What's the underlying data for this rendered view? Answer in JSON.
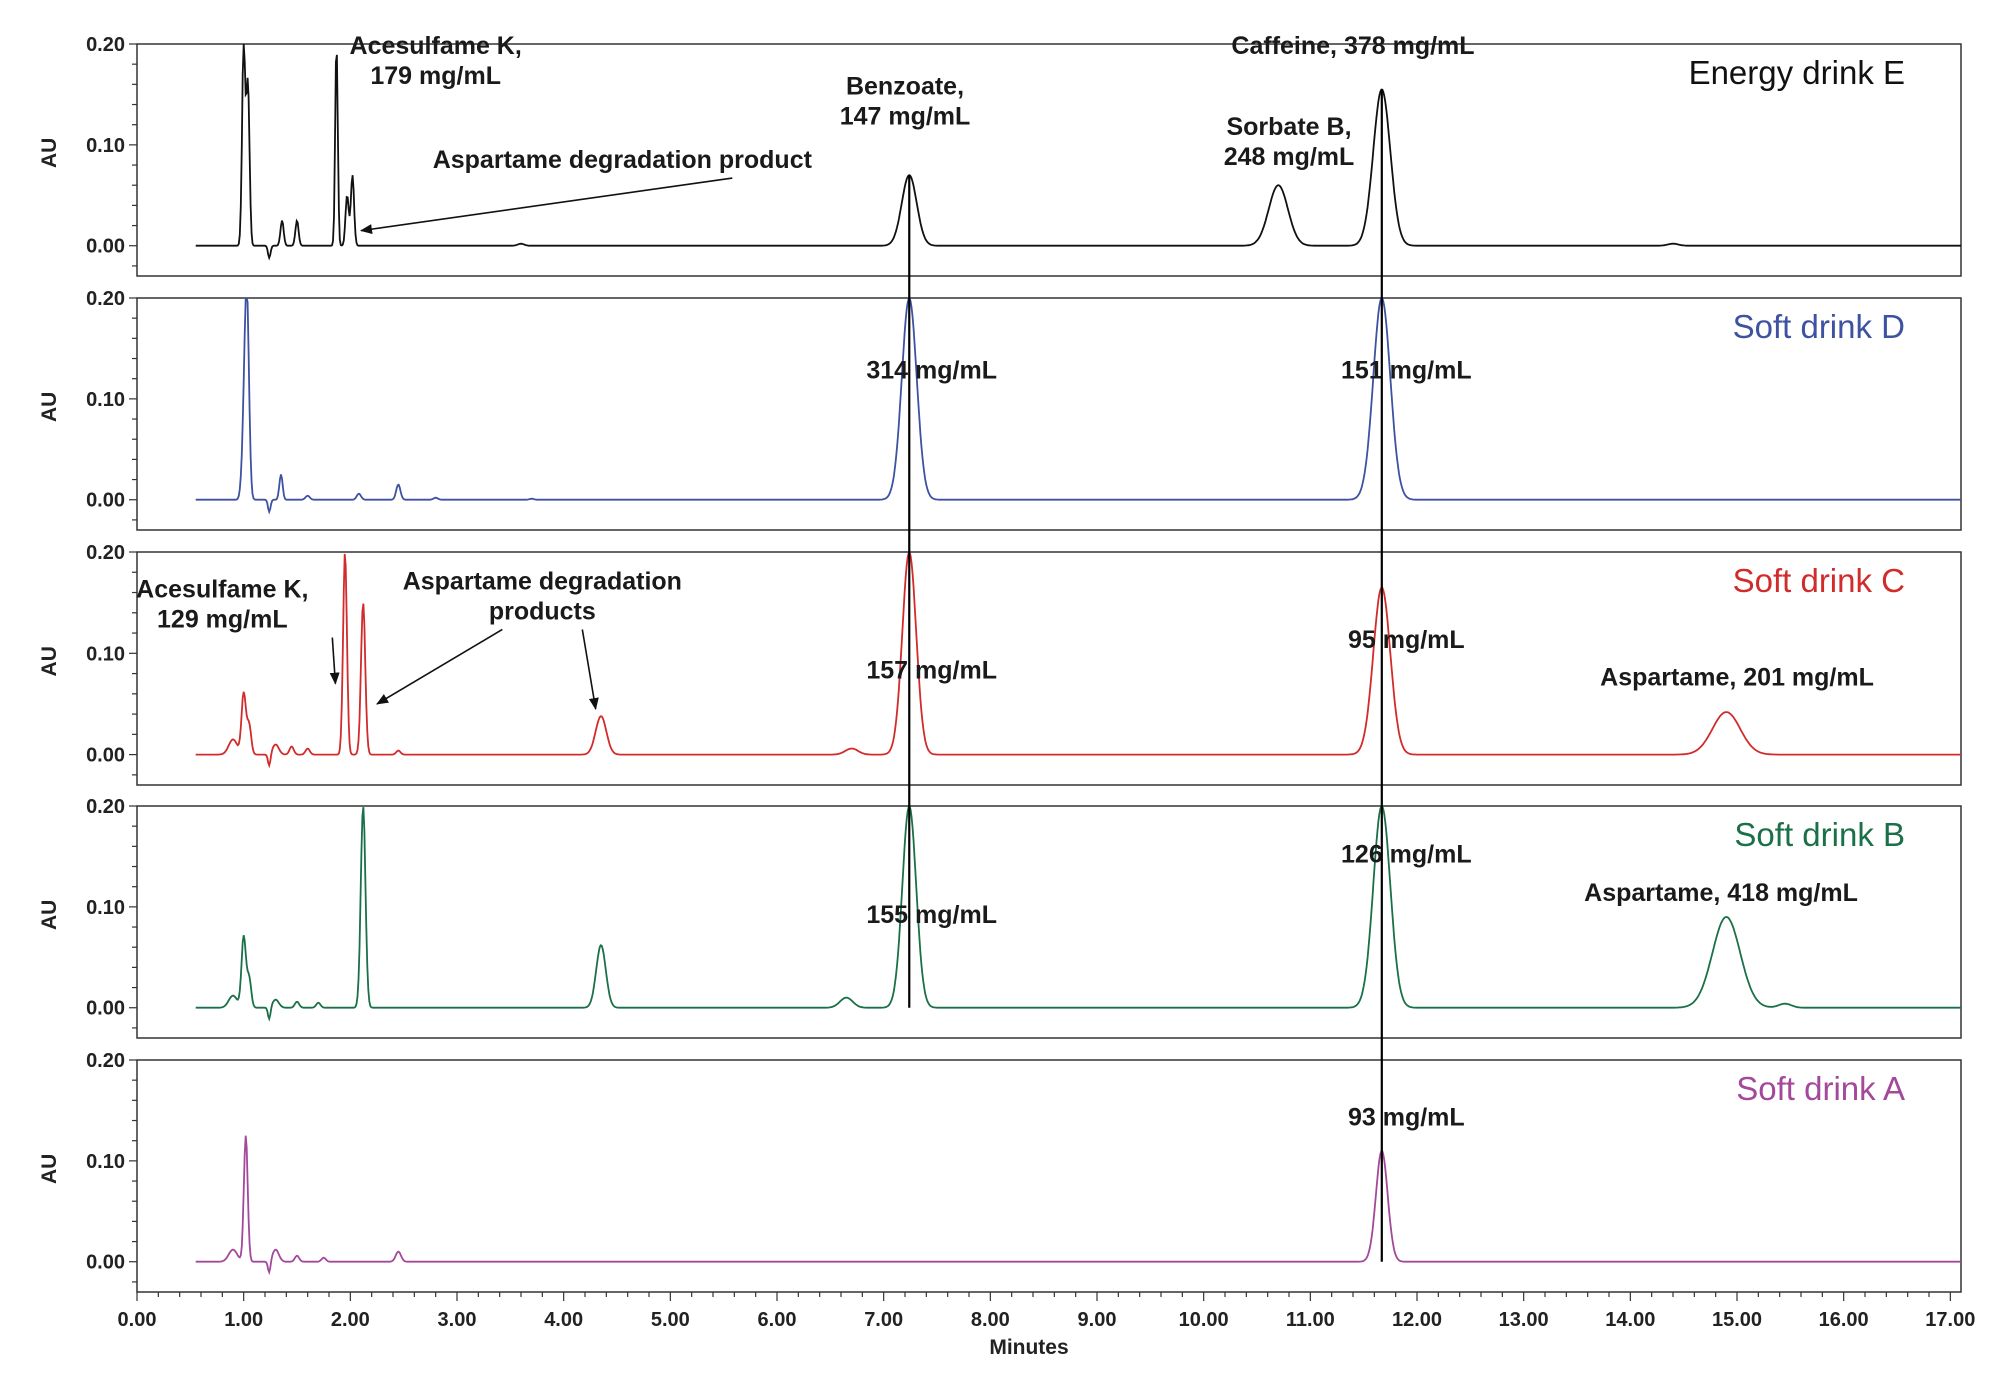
{
  "chart_data": {
    "type": "line",
    "xlabel": "Minutes",
    "ylabel": "AU",
    "xlim": [
      0,
      17.1
    ],
    "ylim": [
      -0.03,
      0.2
    ],
    "x_ticks": [
      "0.00",
      "1.00",
      "2.00",
      "3.00",
      "4.00",
      "5.00",
      "6.00",
      "7.00",
      "8.00",
      "9.00",
      "10.00",
      "11.00",
      "12.00",
      "13.00",
      "14.00",
      "15.00",
      "16.00",
      "17.00"
    ],
    "y_ticks": [
      "0.00",
      "0.10",
      "0.20"
    ],
    "reference_lines_x": [
      7.24,
      11.67
    ],
    "series": [
      {
        "name": "Energy drink E",
        "color": "#111111",
        "peaks": [
          [
            1.0,
            0.2,
            0.015
          ],
          [
            1.04,
            0.16,
            0.015
          ],
          [
            1.36,
            0.025,
            0.015
          ],
          [
            1.5,
            0.025,
            0.015
          ],
          [
            1.87,
            0.2,
            0.012
          ],
          [
            1.97,
            0.05,
            0.015
          ],
          [
            2.02,
            0.07,
            0.015
          ],
          [
            3.6,
            0.002,
            0.03
          ],
          [
            7.24,
            0.07,
            0.07
          ],
          [
            10.7,
            0.06,
            0.09
          ],
          [
            11.67,
            0.155,
            0.08
          ],
          [
            14.4,
            0.002,
            0.05
          ]
        ],
        "annotations": [
          {
            "lines": [
              "Acesulfame K,",
              "179 mg/mL"
            ],
            "x": 2.8,
            "y": 0.19
          },
          {
            "lines": [
              "Aspartame degradation product"
            ],
            "x": 4.55,
            "y": 0.077,
            "arrow_to": [
              2.1,
              0.015
            ]
          },
          {
            "lines": [
              "Benzoate,",
              "147 mg/mL"
            ],
            "x": 7.2,
            "y": 0.15
          },
          {
            "lines": [
              "Caffeine, 378 mg/mL"
            ],
            "x": 11.4,
            "y": 0.19
          },
          {
            "lines": [
              "Sorbate B,",
              "248 mg/mL"
            ],
            "x": 10.8,
            "y": 0.11
          }
        ]
      },
      {
        "name": "Soft drink D",
        "color": "#3d52a0",
        "peaks": [
          [
            1.03,
            0.2,
            0.02
          ],
          [
            1.0,
            0.05,
            0.02
          ],
          [
            1.35,
            0.025,
            0.015
          ],
          [
            1.6,
            0.004,
            0.02
          ],
          [
            2.08,
            0.006,
            0.02
          ],
          [
            2.45,
            0.015,
            0.02
          ],
          [
            2.8,
            0.002,
            0.02
          ],
          [
            3.7,
            0.001,
            0.02
          ],
          [
            7.24,
            0.2,
            0.07
          ],
          [
            11.67,
            0.2,
            0.08
          ]
        ],
        "annotations": [
          {
            "lines": [
              "314 mg/mL"
            ],
            "x": 7.45,
            "y": 0.12
          },
          {
            "lines": [
              "151 mg/mL"
            ],
            "x": 11.9,
            "y": 0.12
          }
        ]
      },
      {
        "name": "Soft drink C",
        "color": "#d22b2b",
        "peaks": [
          [
            0.9,
            0.015,
            0.04
          ],
          [
            1.0,
            0.06,
            0.02
          ],
          [
            1.05,
            0.03,
            0.02
          ],
          [
            1.3,
            0.01,
            0.03
          ],
          [
            1.45,
            0.008,
            0.02
          ],
          [
            1.6,
            0.006,
            0.02
          ],
          [
            1.95,
            0.2,
            0.018
          ],
          [
            2.12,
            0.15,
            0.02
          ],
          [
            2.45,
            0.004,
            0.02
          ],
          [
            4.35,
            0.038,
            0.05
          ],
          [
            6.7,
            0.006,
            0.06
          ],
          [
            7.24,
            0.2,
            0.065
          ],
          [
            11.67,
            0.165,
            0.08
          ],
          [
            14.9,
            0.042,
            0.13
          ]
        ],
        "annotations": [
          {
            "lines": [
              "Acesulfame K,",
              "129 mg/mL"
            ],
            "x": 0.8,
            "y": 0.155,
            "arrow_to": [
              1.86,
              0.07
            ]
          },
          {
            "lines": [
              "Aspartame degradation",
              "products"
            ],
            "x": 3.8,
            "y": 0.163,
            "arrow_to": [
              2.25,
              0.05
            ],
            "arrow_to_2": [
              4.3,
              0.045
            ]
          },
          {
            "lines": [
              "157 mg/mL"
            ],
            "x": 7.45,
            "y": 0.075
          },
          {
            "lines": [
              "95 mg/mL"
            ],
            "x": 11.9,
            "y": 0.105
          },
          {
            "lines": [
              "Aspartame, 201 mg/mL"
            ],
            "x": 15.0,
            "y": 0.068
          }
        ]
      },
      {
        "name": "Soft drink B",
        "color": "#1a7048",
        "peaks": [
          [
            0.9,
            0.012,
            0.04
          ],
          [
            1.0,
            0.07,
            0.02
          ],
          [
            1.05,
            0.03,
            0.02
          ],
          [
            1.3,
            0.008,
            0.03
          ],
          [
            1.5,
            0.006,
            0.02
          ],
          [
            1.7,
            0.005,
            0.02
          ],
          [
            2.12,
            0.2,
            0.022
          ],
          [
            4.35,
            0.062,
            0.045
          ],
          [
            6.65,
            0.01,
            0.06
          ],
          [
            7.24,
            0.2,
            0.065
          ],
          [
            11.67,
            0.2,
            0.08
          ],
          [
            14.9,
            0.09,
            0.13
          ],
          [
            15.45,
            0.004,
            0.06
          ]
        ],
        "annotations": [
          {
            "lines": [
              "126 mg/mL"
            ],
            "x": 11.9,
            "y": 0.144
          },
          {
            "lines": [
              "Aspartame, 418 mg/mL"
            ],
            "x": 14.85,
            "y": 0.106
          },
          {
            "lines": [
              "155 mg/mL"
            ],
            "x": 7.45,
            "y": 0.084
          }
        ]
      },
      {
        "name": "Soft drink A",
        "color": "#a3489a",
        "peaks": [
          [
            0.9,
            0.012,
            0.04
          ],
          [
            1.02,
            0.125,
            0.018
          ],
          [
            1.3,
            0.012,
            0.03
          ],
          [
            1.5,
            0.006,
            0.02
          ],
          [
            1.75,
            0.004,
            0.02
          ],
          [
            2.45,
            0.01,
            0.025
          ],
          [
            11.67,
            0.11,
            0.055
          ]
        ],
        "annotations": [
          {
            "lines": [
              "93 mg/mL"
            ],
            "x": 11.9,
            "y": 0.135
          }
        ]
      }
    ]
  }
}
